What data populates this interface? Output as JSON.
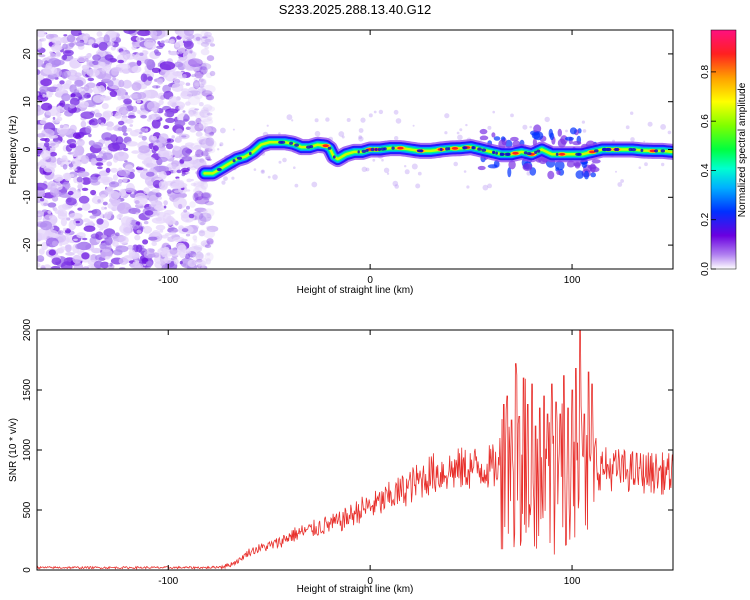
{
  "title": "S233.2025.288.13.40.G12",
  "chart_data": [
    {
      "type": "heatmap",
      "title": "S233.2025.288.13.40.G12",
      "xlabel": "Height of straight line (km)",
      "ylabel": "Frequency (Hz)",
      "xlim": [
        -165,
        150
      ],
      "ylim": [
        -25,
        25
      ],
      "xticks": [
        -100,
        0,
        100
      ],
      "yticks": [
        -20,
        -10,
        0,
        10,
        20
      ],
      "noise_region_x": [
        -165,
        -78
      ],
      "ridge": {
        "x": [
          -82,
          -78,
          -74,
          -70,
          -66,
          -62,
          -58,
          -54,
          -50,
          -46,
          -42,
          -38,
          -34,
          -30,
          -26,
          -22,
          -20,
          -18,
          -16,
          -12,
          -8,
          -4,
          0,
          5,
          10,
          15,
          20,
          25,
          30,
          35,
          40,
          45,
          50,
          55,
          60,
          65,
          70,
          75,
          80,
          85,
          90,
          95,
          100,
          105,
          110,
          115,
          120,
          125,
          130,
          135,
          140,
          145,
          150
        ],
        "y": [
          -5,
          -5,
          -4,
          -3,
          -2,
          -1.5,
          -0.5,
          1,
          1.5,
          1.5,
          1.5,
          1.2,
          0.5,
          0.5,
          1,
          0.8,
          0.2,
          -1.5,
          -2,
          -1,
          -0.5,
          -0.5,
          0,
          0,
          0.3,
          0.3,
          0,
          -0.3,
          -0.3,
          0,
          0.2,
          0.3,
          0.5,
          0,
          -0.5,
          -1,
          -1,
          -0.5,
          -1,
          0,
          -1,
          -1,
          -1,
          -1,
          -0.5,
          0,
          0,
          0,
          0,
          -0.2,
          -0.3,
          -0.3,
          -0.5
        ]
      },
      "colorbar": {
        "label": "Normalized spectral amplitude",
        "range": [
          0.0,
          0.97
        ],
        "ticks": [
          0.0,
          0.2,
          0.4,
          0.6,
          0.8
        ],
        "tick_labels": [
          "0.0",
          "0.2",
          "0.4",
          "0.6",
          "0.8"
        ]
      }
    },
    {
      "type": "line",
      "xlabel": "Height of straight line (km)",
      "ylabel": "SNR (10 * v/v)",
      "xlim": [
        -165,
        150
      ],
      "ylim": [
        0,
        2000
      ],
      "xticks": [
        -100,
        0,
        100
      ],
      "yticks": [
        0,
        500,
        1000,
        1500,
        2000
      ],
      "series": [
        {
          "name": "SNR",
          "color": "#e8302c",
          "envelope_x": [
            -165,
            -140,
            -100,
            -80,
            -75,
            -70,
            -65,
            -60,
            -55,
            -50,
            -45,
            -40,
            -35,
            -30,
            -25,
            -20,
            -15,
            -10,
            -5,
            0,
            5,
            10,
            15,
            20,
            25,
            30,
            40,
            50,
            60,
            62,
            65,
            70,
            75,
            80,
            85,
            90,
            95,
            100,
            105,
            110,
            112,
            115,
            120,
            130,
            140,
            150
          ],
          "envelope_y": [
            20,
            20,
            20,
            20,
            25,
            40,
            80,
            150,
            180,
            200,
            230,
            280,
            310,
            330,
            360,
            380,
            400,
            450,
            500,
            530,
            560,
            610,
            650,
            700,
            750,
            800,
            830,
            850,
            860,
            860,
            870,
            880,
            890,
            880,
            870,
            900,
            910,
            880,
            870,
            860,
            850,
            850,
            840,
            820,
            810,
            800
          ],
          "spikes": [
            [
              66,
              1380
            ],
            [
              68,
              1450
            ],
            [
              70,
              1250
            ],
            [
              72,
              1720
            ],
            [
              74,
              1280
            ],
            [
              76,
              1600
            ],
            [
              78,
              1380
            ],
            [
              80,
              1550
            ],
            [
              82,
              1200
            ],
            [
              84,
              1350
            ],
            [
              86,
              1450
            ],
            [
              88,
              1300
            ],
            [
              90,
              1550
            ],
            [
              92,
              1400
            ],
            [
              94,
              1300
            ],
            [
              96,
              1620
            ],
            [
              98,
              1350
            ],
            [
              100,
              1500
            ],
            [
              102,
              1680
            ],
            [
              104,
              2000
            ],
            [
              106,
              1300
            ],
            [
              108,
              1650
            ],
            [
              110,
              1550
            ]
          ]
        }
      ]
    }
  ]
}
